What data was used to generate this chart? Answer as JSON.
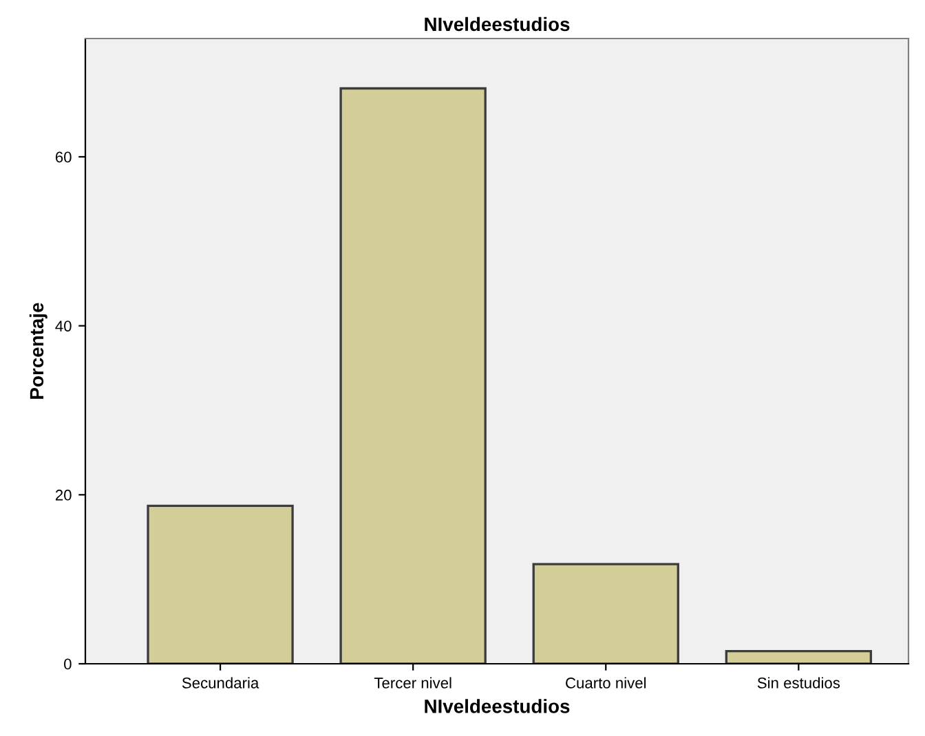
{
  "chart_data": {
    "type": "bar",
    "title": "NIveldeestudios",
    "xlabel": "NIveldeestudios",
    "ylabel": "Porcentaje",
    "categories": [
      "Secundaria",
      "Tercer nivel",
      "Cuarto nivel",
      "Sin estudios"
    ],
    "values": [
      18.7,
      68.1,
      11.8,
      1.5
    ],
    "color": "#d3ce97",
    "ylim": [
      0,
      74
    ],
    "yticks": [
      0,
      20,
      40,
      60
    ],
    "grid": false,
    "legend": false
  }
}
